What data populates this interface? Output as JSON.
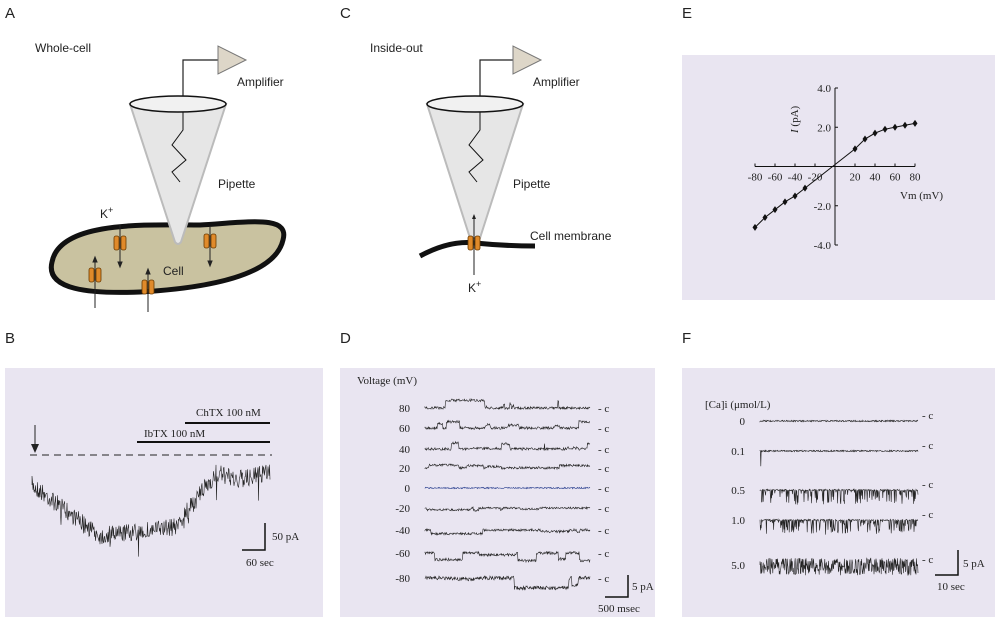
{
  "panels": {
    "a": {
      "letter": "A",
      "title": "Whole-cell",
      "amplifier": "Amplifier",
      "pipette": "Pipette",
      "ion": "K",
      "ion_sign": "+",
      "cell": "Cell"
    },
    "b": {
      "letter": "B",
      "chtx": "ChTX 100 nM",
      "ibtx": "IbTX  100 nM",
      "scale_y": "50 pA",
      "scale_x": "60 sec"
    },
    "c": {
      "letter": "C",
      "title": "Inside-out",
      "amplifier": "Amplifier",
      "pipette": "Pipette",
      "membrane": "Cell membrane",
      "ion": "K",
      "ion_sign": "+"
    },
    "d": {
      "letter": "D",
      "axis_title": "Voltage  (mV)",
      "rows": [
        "80",
        "60",
        "40",
        "20",
        "0",
        "-20",
        "-40",
        "-60",
        "-80"
      ],
      "closed": "- c",
      "scale_y": "5 pA",
      "scale_x": "500 msec"
    },
    "e": {
      "letter": "E",
      "x_label": "Vm (mV)",
      "y_label_italic": "I",
      "y_label_unit": "(pA)",
      "x": [
        -80,
        -70,
        -60,
        -50,
        -40,
        -30,
        20,
        30,
        40,
        50,
        60,
        70,
        80
      ],
      "y": [
        -3.1,
        -2.6,
        -2.2,
        -1.8,
        -1.5,
        -1.1,
        0.9,
        1.4,
        1.7,
        1.9,
        2.0,
        2.1,
        2.2
      ],
      "xlim": [
        -80,
        80
      ],
      "ylim": [
        -4,
        4
      ],
      "xticks": [
        -80,
        -60,
        -40,
        -20,
        20,
        40,
        60,
        80
      ],
      "yticks": [
        {
          "value": 4,
          "label": "4.0"
        },
        {
          "value": 2,
          "label": "2.0"
        },
        {
          "value": -2,
          "label": "-2.0"
        },
        {
          "value": -4,
          "label": "-4.0"
        }
      ]
    },
    "f": {
      "letter": "F",
      "axis_title": "[Ca]i  (μmol/L)",
      "rows": [
        "0",
        "0.1",
        "0.5",
        "1.0",
        "5.0"
      ],
      "closed": "- c",
      "scale_y": "5 pA",
      "scale_x": "10 sec"
    }
  }
}
